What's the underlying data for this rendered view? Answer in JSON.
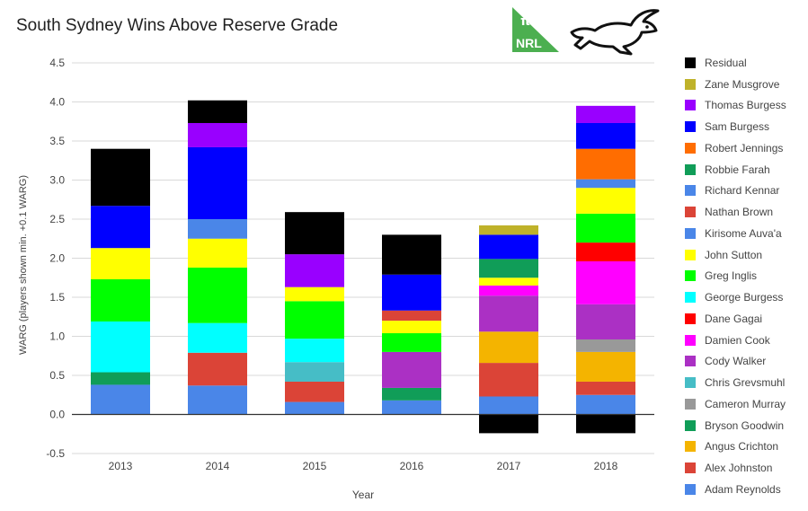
{
  "chart_data": {
    "type": "bar",
    "stacked": true,
    "title": "South Sydney Wins Above Reserve Grade",
    "xlabel": "Year",
    "ylabel": "WARG (players shown min. +0.1 WARG)",
    "ylim": [
      -0.5,
      4.5
    ],
    "yticks": [
      "4.5",
      "4.0",
      "3.5",
      "3.0",
      "2.5",
      "2.0",
      "1.5",
      "1.0",
      "0.5",
      "0.0",
      "-0.5"
    ],
    "grid": true,
    "legend_position": "right",
    "categories": [
      "2013",
      "2014",
      "2015",
      "2016",
      "2017",
      "2018"
    ],
    "series": [
      {
        "name": "Adam Reynolds",
        "color": "#4a86e8",
        "values": [
          0.38,
          0.37,
          0.16,
          0.18,
          0.23,
          0.25
        ]
      },
      {
        "name": "Alex Johnston",
        "color": "#db4437",
        "values": [
          0,
          0.42,
          0.26,
          0,
          0.43,
          0.17
        ]
      },
      {
        "name": "Angus Crichton",
        "color": "#f4b400",
        "values": [
          0,
          0,
          0,
          0,
          0.4,
          0.38
        ]
      },
      {
        "name": "Bryson Goodwin",
        "color": "#109d58",
        "values": [
          0.16,
          0,
          0,
          0.16,
          0,
          0
        ]
      },
      {
        "name": "Cameron Murray",
        "color": "#999999",
        "values": [
          0,
          0,
          0,
          0,
          0,
          0.16
        ]
      },
      {
        "name": "Chris Grevsmuhl",
        "color": "#46bdc6",
        "values": [
          0,
          0,
          0.25,
          0,
          0,
          0
        ]
      },
      {
        "name": "Cody Walker",
        "color": "#ab30c4",
        "values": [
          0,
          0,
          0,
          0.46,
          0.46,
          0.45
        ]
      },
      {
        "name": "Damien Cook",
        "color": "#ff00ff",
        "values": [
          0,
          0,
          0,
          0,
          0.13,
          0.55
        ]
      },
      {
        "name": "Dane Gagai",
        "color": "#ff0000",
        "values": [
          0,
          0,
          0,
          0,
          0,
          0.24
        ]
      },
      {
        "name": "George Burgess",
        "color": "#00ffff",
        "values": [
          0.65,
          0.38,
          0.3,
          0,
          0,
          0
        ]
      },
      {
        "name": "Greg Inglis",
        "color": "#00ff00",
        "values": [
          0.54,
          0.71,
          0.48,
          0.24,
          0,
          0.37
        ]
      },
      {
        "name": "John Sutton",
        "color": "#ffff00",
        "values": [
          0.4,
          0.37,
          0.18,
          0.16,
          0.1,
          0.33
        ]
      },
      {
        "name": "Kirisome Auva'a",
        "color": "#4a86e8",
        "values": [
          0,
          0.25,
          0,
          0,
          0,
          0
        ]
      },
      {
        "name": "Nathan Brown",
        "color": "#db4437",
        "values": [
          0,
          0,
          0,
          0.13,
          0,
          0
        ]
      },
      {
        "name": "Richard Kennar",
        "color": "#4a86e8",
        "values": [
          0,
          0,
          0,
          0,
          0,
          0.11
        ]
      },
      {
        "name": "Robbie Farah",
        "color": "#109d58",
        "values": [
          0,
          0,
          0,
          0,
          0.24,
          0
        ]
      },
      {
        "name": "Robert Jennings",
        "color": "#ff6d01",
        "values": [
          0,
          0,
          0,
          0,
          0,
          0.39
        ]
      },
      {
        "name": "Sam Burgess",
        "color": "#0000ff",
        "values": [
          0.54,
          0.92,
          0,
          0.46,
          0.31,
          0.33
        ]
      },
      {
        "name": "Thomas Burgess",
        "color": "#9900ff",
        "values": [
          0,
          0.31,
          0.42,
          0,
          0,
          0.22
        ]
      },
      {
        "name": "Zane Musgrove",
        "color": "#bfb22a",
        "values": [
          0,
          0,
          0,
          0,
          0.12,
          0
        ]
      },
      {
        "name": "Residual",
        "color": "#000000",
        "values": [
          0.73,
          0.29,
          0.54,
          0.51,
          -0.24,
          -0.24
        ]
      }
    ]
  },
  "logos": {
    "nrl_icon": "pi-nrl-logo-icon",
    "nrl_pi_text": "π",
    "nrl_text": "NRL",
    "rabbit_icon": "rabbit-logo-icon"
  }
}
